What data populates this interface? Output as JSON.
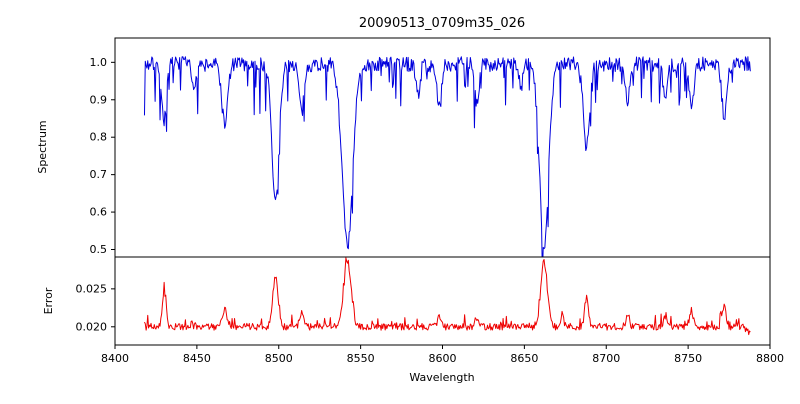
{
  "title": "20090513_0709m35_026",
  "axes": {
    "xlabel": "Wavelength",
    "spectrum_ylabel": "Spectrum",
    "error_ylabel": "Error"
  },
  "chart_data": [
    {
      "type": "line",
      "name": "spectrum",
      "color": "#0000dd",
      "xlim": [
        8400,
        8800
      ],
      "ylim": [
        0.48,
        1.065
      ],
      "x_start": 8418,
      "x_end": 8788,
      "x_step": 0.5,
      "baseline": 0.995,
      "noise": 0.04,
      "dip_prob": 0.13,
      "dip_max": -0.12,
      "seed": 7,
      "ytick_values": [
        0.5,
        0.6,
        0.7,
        0.8,
        0.9,
        1.0
      ],
      "ytick_labels": [
        "0.5",
        "0.6",
        "0.7",
        "0.8",
        "0.9",
        "1.0"
      ],
      "features": [
        {
          "center": 8430,
          "amp": -0.15,
          "width": 1.5
        },
        {
          "center": 8448,
          "amp": -0.07,
          "width": 1.2
        },
        {
          "center": 8467,
          "amp": -0.16,
          "width": 1.8
        },
        {
          "center": 8498,
          "amp": -0.37,
          "width": 2.2
        },
        {
          "center": 8514,
          "amp": -0.13,
          "width": 1.5
        },
        {
          "center": 8542,
          "amp": -0.49,
          "width": 3.2
        },
        {
          "center": 8585,
          "amp": -0.08,
          "width": 1.3
        },
        {
          "center": 8598,
          "amp": -0.12,
          "width": 1.4
        },
        {
          "center": 8621,
          "amp": -0.11,
          "width": 1.4
        },
        {
          "center": 8648,
          "amp": -0.06,
          "width": 1.2
        },
        {
          "center": 8662,
          "amp": -0.48,
          "width": 2.8
        },
        {
          "center": 8688,
          "amp": -0.22,
          "width": 1.8
        },
        {
          "center": 8713,
          "amp": -0.1,
          "width": 1.4
        },
        {
          "center": 8736,
          "amp": -0.09,
          "width": 1.3
        },
        {
          "center": 8752,
          "amp": -0.11,
          "width": 1.4
        },
        {
          "center": 8772,
          "amp": -0.14,
          "width": 1.5
        }
      ]
    },
    {
      "type": "line",
      "name": "error",
      "color": "#ee0000",
      "xlim": [
        8400,
        8800
      ],
      "ylim": [
        0.0176,
        0.0292
      ],
      "x_start": 8418,
      "x_end": 8788,
      "x_step": 0.5,
      "baseline": 0.02,
      "noise": 0.0009,
      "dip_prob": 0.1,
      "dip_max": 0.0014,
      "seed": 12,
      "ytick_values": [
        0.02,
        0.025
      ],
      "ytick_labels": [
        "0.020",
        "0.025"
      ],
      "xtick_values": [
        8400,
        8450,
        8500,
        8550,
        8600,
        8650,
        8700,
        8750,
        8800
      ],
      "xtick_labels": [
        "8400",
        "8450",
        "8500",
        "8550",
        "8600",
        "8650",
        "8700",
        "8750",
        "8800"
      ],
      "features": [
        {
          "center": 8430,
          "amp": 0.0045,
          "width": 1.2
        },
        {
          "center": 8467,
          "amp": 0.0022,
          "width": 1.5
        },
        {
          "center": 8498,
          "amp": 0.0068,
          "width": 1.6
        },
        {
          "center": 8514,
          "amp": 0.0018,
          "width": 1.2
        },
        {
          "center": 8542,
          "amp": 0.0086,
          "width": 2.2
        },
        {
          "center": 8598,
          "amp": 0.0012,
          "width": 1.2
        },
        {
          "center": 8621,
          "amp": 0.0012,
          "width": 1.2
        },
        {
          "center": 8662,
          "amp": 0.0086,
          "width": 2.0
        },
        {
          "center": 8673,
          "amp": 0.0016,
          "width": 1.0
        },
        {
          "center": 8688,
          "amp": 0.0038,
          "width": 1.2
        },
        {
          "center": 8713,
          "amp": 0.0012,
          "width": 1.2
        },
        {
          "center": 8736,
          "amp": 0.0011,
          "width": 1.2
        },
        {
          "center": 8752,
          "amp": 0.0019,
          "width": 1.2
        },
        {
          "center": 8772,
          "amp": 0.0028,
          "width": 1.2
        },
        {
          "center": 8790,
          "amp": -0.0015,
          "width": 2.5
        }
      ]
    }
  ]
}
